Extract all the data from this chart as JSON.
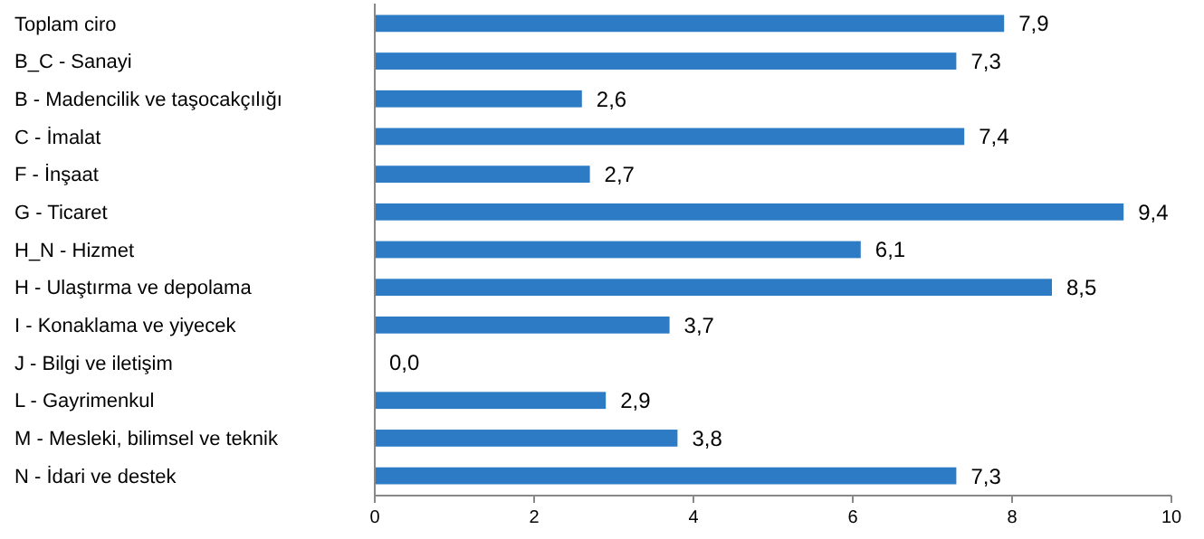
{
  "chart_data": {
    "type": "bar",
    "orientation": "horizontal",
    "categories": [
      "Toplam ciro",
      "B_C - Sanayi",
      "B - Madencilik ve taşocakçılığı",
      "C - İmalat",
      "F - İnşaat",
      "G - Ticaret",
      "H_N - Hizmet",
      "H - Ulaştırma ve depolama",
      "I - Konaklama ve yiyecek",
      "J - Bilgi ve iletişim",
      "L - Gayrimenkul",
      "M - Mesleki, bilimsel ve teknik",
      "N - İdari ve destek"
    ],
    "values": [
      7.9,
      7.3,
      2.6,
      7.4,
      2.7,
      9.4,
      6.1,
      8.5,
      3.7,
      0.0,
      2.9,
      3.8,
      7.3
    ],
    "value_labels": [
      "7,9",
      "7,3",
      "2,6",
      "7,4",
      "2,7",
      "9,4",
      "6,1",
      "8,5",
      "3,7",
      "0,0",
      "2,9",
      "3,8",
      "7,3"
    ],
    "color": "#2e7bc5",
    "xlim": [
      0,
      10
    ],
    "xticks": [
      0,
      2,
      4,
      6,
      8,
      10
    ],
    "grid": false
  }
}
